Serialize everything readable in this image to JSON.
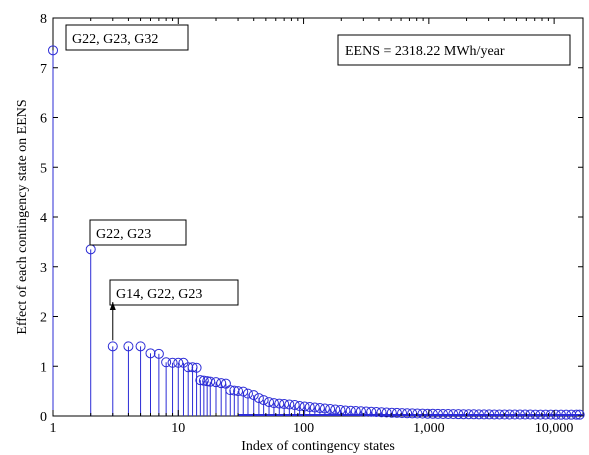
{
  "chart_data": {
    "type": "stem",
    "xlabel": "Index of contingency states",
    "ylabel": "Effect of each contingency state on EENS",
    "x_scale": "log",
    "xlim": [
      1,
      17000
    ],
    "ylim": [
      0,
      8
    ],
    "x_ticks": [
      {
        "value": 1,
        "label": "1"
      },
      {
        "value": 10,
        "label": "10"
      },
      {
        "value": 100,
        "label": "100"
      },
      {
        "value": 1000,
        "label": "1,000"
      },
      {
        "value": 10000,
        "label": "10,000"
      }
    ],
    "y_ticks": [
      {
        "value": 0,
        "label": "0"
      },
      {
        "value": 1,
        "label": "1"
      },
      {
        "value": 2,
        "label": "2"
      },
      {
        "value": 3,
        "label": "3"
      },
      {
        "value": 4,
        "label": "4"
      },
      {
        "value": 5,
        "label": "5"
      },
      {
        "value": 6,
        "label": "6"
      },
      {
        "value": 7,
        "label": "7"
      },
      {
        "value": 8,
        "label": "8"
      }
    ],
    "grid": false,
    "series_color": "#2b2bd6",
    "points": [
      {
        "x": 1,
        "y": 7.35
      },
      {
        "x": 2,
        "y": 3.35
      },
      {
        "x": 3,
        "y": 1.4
      },
      {
        "x": 4,
        "y": 1.4
      },
      {
        "x": 5,
        "y": 1.4
      },
      {
        "x": 6,
        "y": 1.26
      },
      {
        "x": 7,
        "y": 1.25
      },
      {
        "x": 8,
        "y": 1.08
      },
      {
        "x": 9,
        "y": 1.07
      },
      {
        "x": 10,
        "y": 1.07
      },
      {
        "x": 11,
        "y": 1.07
      },
      {
        "x": 12,
        "y": 0.98
      },
      {
        "x": 13,
        "y": 0.98
      },
      {
        "x": 14,
        "y": 0.97
      },
      {
        "x": 15,
        "y": 0.72
      },
      {
        "x": 16,
        "y": 0.71
      },
      {
        "x": 17,
        "y": 0.7
      },
      {
        "x": 18,
        "y": 0.69
      },
      {
        "x": 20,
        "y": 0.68
      },
      {
        "x": 22,
        "y": 0.66
      },
      {
        "x": 24,
        "y": 0.65
      },
      {
        "x": 26,
        "y": 0.52
      },
      {
        "x": 28,
        "y": 0.51
      },
      {
        "x": 30,
        "y": 0.5
      },
      {
        "x": 33,
        "y": 0.49
      },
      {
        "x": 36,
        "y": 0.45
      },
      {
        "x": 40,
        "y": 0.42
      },
      {
        "x": 44,
        "y": 0.36
      },
      {
        "x": 48,
        "y": 0.32
      },
      {
        "x": 53,
        "y": 0.28
      },
      {
        "x": 58,
        "y": 0.26
      },
      {
        "x": 64,
        "y": 0.25
      },
      {
        "x": 70,
        "y": 0.24
      },
      {
        "x": 77,
        "y": 0.23
      },
      {
        "x": 85,
        "y": 0.22
      },
      {
        "x": 93,
        "y": 0.2
      },
      {
        "x": 102,
        "y": 0.19
      },
      {
        "x": 112,
        "y": 0.18
      },
      {
        "x": 123,
        "y": 0.17
      },
      {
        "x": 135,
        "y": 0.16
      },
      {
        "x": 148,
        "y": 0.15
      },
      {
        "x": 163,
        "y": 0.14
      },
      {
        "x": 179,
        "y": 0.13
      },
      {
        "x": 197,
        "y": 0.12
      },
      {
        "x": 216,
        "y": 0.11
      },
      {
        "x": 238,
        "y": 0.105
      },
      {
        "x": 261,
        "y": 0.1
      },
      {
        "x": 287,
        "y": 0.095
      },
      {
        "x": 316,
        "y": 0.09
      },
      {
        "x": 347,
        "y": 0.085
      },
      {
        "x": 381,
        "y": 0.08
      },
      {
        "x": 419,
        "y": 0.075
      },
      {
        "x": 460,
        "y": 0.07
      },
      {
        "x": 506,
        "y": 0.066
      },
      {
        "x": 556,
        "y": 0.062
      },
      {
        "x": 611,
        "y": 0.058
      },
      {
        "x": 671,
        "y": 0.055
      },
      {
        "x": 737,
        "y": 0.052
      },
      {
        "x": 810,
        "y": 0.05
      },
      {
        "x": 890,
        "y": 0.048
      },
      {
        "x": 978,
        "y": 0.046
      },
      {
        "x": 1075,
        "y": 0.044
      },
      {
        "x": 1181,
        "y": 0.042
      },
      {
        "x": 1298,
        "y": 0.04
      },
      {
        "x": 1426,
        "y": 0.039
      },
      {
        "x": 1567,
        "y": 0.038
      },
      {
        "x": 1722,
        "y": 0.037
      },
      {
        "x": 1892,
        "y": 0.036
      },
      {
        "x": 2079,
        "y": 0.035
      },
      {
        "x": 2285,
        "y": 0.034
      },
      {
        "x": 2511,
        "y": 0.033
      },
      {
        "x": 2759,
        "y": 0.032
      },
      {
        "x": 3032,
        "y": 0.032
      },
      {
        "x": 3332,
        "y": 0.031
      },
      {
        "x": 3661,
        "y": 0.031
      },
      {
        "x": 4023,
        "y": 0.03
      },
      {
        "x": 4421,
        "y": 0.03
      },
      {
        "x": 4858,
        "y": 0.03
      },
      {
        "x": 5339,
        "y": 0.029
      },
      {
        "x": 5866,
        "y": 0.029
      },
      {
        "x": 6446,
        "y": 0.029
      },
      {
        "x": 7084,
        "y": 0.028
      },
      {
        "x": 7784,
        "y": 0.028
      },
      {
        "x": 8554,
        "y": 0.028
      },
      {
        "x": 9400,
        "y": 0.028
      },
      {
        "x": 10330,
        "y": 0.027
      },
      {
        "x": 11351,
        "y": 0.027
      },
      {
        "x": 12474,
        "y": 0.027
      },
      {
        "x": 13708,
        "y": 0.027
      },
      {
        "x": 15063,
        "y": 0.027
      },
      {
        "x": 16000,
        "y": 0.027
      }
    ],
    "annotations": [
      {
        "text": "G22, G23, G32",
        "x": 1,
        "y": 7.35
      },
      {
        "text": "G22, G23",
        "x": 2,
        "y": 3.35
      },
      {
        "text": "G14, G22, G23",
        "x": 3,
        "y": 1.4
      }
    ],
    "textbox": "EENS = 2318.22 MWh/year"
  }
}
